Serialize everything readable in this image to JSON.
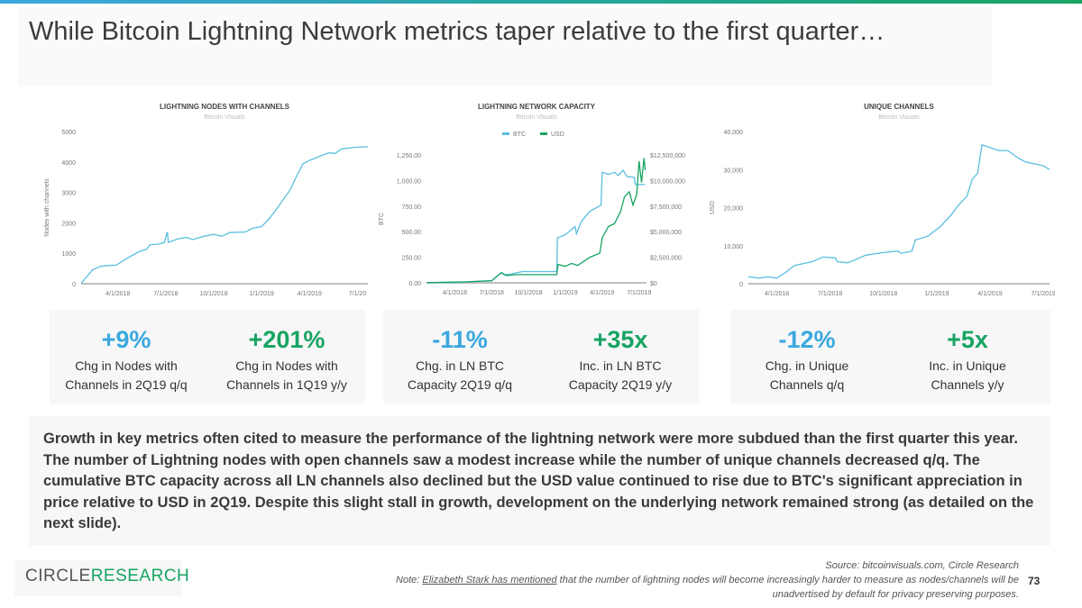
{
  "title": "While Bitcoin Lightning Network metrics taper relative to the first quarter…",
  "colors": {
    "blue": "#5bbfe0",
    "green": "#17a463"
  },
  "chart_data": [
    {
      "type": "line",
      "title": "LIGHTNING NODES WITH CHANNELS",
      "subtitle": "Bitcoin Visuals",
      "ylabel": "Nodes with channels",
      "ylim": [
        0,
        5000
      ],
      "yticks": [
        "0",
        "1000",
        "2000",
        "3000",
        "4000",
        "5000"
      ],
      "xticks": [
        "4/1/2018",
        "7/1/2018",
        "10/1/2018",
        "1/1/2019",
        "4/1/2019",
        "7/1/20"
      ],
      "x_unit": "months since 1/1/2018",
      "xlim": [
        0.7,
        18.65
      ],
      "series": [
        {
          "name": "Nodes",
          "color": "#5bbfe0",
          "points": [
            [
              0.7,
              0
            ],
            [
              1.0,
              200
            ],
            [
              1.4,
              450
            ],
            [
              1.9,
              570
            ],
            [
              2.4,
              600
            ],
            [
              2.9,
              610
            ],
            [
              3.3,
              750
            ],
            [
              3.8,
              900
            ],
            [
              4.3,
              1050
            ],
            [
              4.8,
              1130
            ],
            [
              5.0,
              1280
            ],
            [
              5.5,
              1300
            ],
            [
              5.9,
              1350
            ],
            [
              6.1,
              1700
            ],
            [
              6.15,
              1360
            ],
            [
              6.8,
              1480
            ],
            [
              7.3,
              1520
            ],
            [
              7.7,
              1450
            ],
            [
              8.3,
              1550
            ],
            [
              9.0,
              1620
            ],
            [
              9.5,
              1560
            ],
            [
              10.0,
              1680
            ],
            [
              11.0,
              1700
            ],
            [
              11.4,
              1820
            ],
            [
              12.0,
              1880
            ],
            [
              12.5,
              2150
            ],
            [
              13.0,
              2500
            ],
            [
              13.4,
              2800
            ],
            [
              13.8,
              3100
            ],
            [
              14.2,
              3550
            ],
            [
              14.6,
              3950
            ],
            [
              15.0,
              4050
            ],
            [
              15.7,
              4200
            ],
            [
              16.2,
              4300
            ],
            [
              16.6,
              4280
            ],
            [
              17.0,
              4430
            ],
            [
              17.8,
              4480
            ],
            [
              18.65,
              4500
            ]
          ]
        }
      ]
    },
    {
      "type": "line",
      "title": "LIGHTNING NETWORK CAPACITY",
      "subtitle": "Bitcoin Visuals",
      "ylabel": "BTC",
      "y2label": "USD",
      "legend": [
        "BTC",
        "USD"
      ],
      "legend_position": "top",
      "ylim": [
        0,
        1250
      ],
      "y2lim": [
        0,
        12500000
      ],
      "yticks": [
        "0.00",
        "250.00",
        "500.00",
        "750.00",
        "1,000.00",
        "1,250.00"
      ],
      "y2ticks": [
        "$0",
        "$2,500,000",
        "$5,000,000",
        "$7,500,000",
        "$10,000,000",
        "$12,500,000"
      ],
      "xticks": [
        "4/1/2018",
        "7/1/2018",
        "10/1/2018",
        "1/1/2019",
        "4/1/2019",
        "7/1/2019"
      ],
      "x_unit": "months since 1/1/2018",
      "xlim": [
        0.7,
        18.6
      ],
      "series": [
        {
          "name": "BTC",
          "axis": "left",
          "color": "#5bbfe0",
          "points": [
            [
              0.7,
              2
            ],
            [
              3,
              3
            ],
            [
              4,
              10
            ],
            [
              6,
              20
            ],
            [
              6.8,
              100
            ],
            [
              7,
              80
            ],
            [
              7.6,
              85
            ],
            [
              8.5,
              110
            ],
            [
              11.3,
              110
            ],
            [
              11.35,
              440
            ],
            [
              12,
              470
            ],
            [
              12.5,
              520
            ],
            [
              12.8,
              550
            ],
            [
              12.9,
              480
            ],
            [
              13.3,
              600
            ],
            [
              14,
              700
            ],
            [
              14.9,
              760
            ],
            [
              15,
              1080
            ],
            [
              15.5,
              1060
            ],
            [
              16,
              1080
            ],
            [
              16.3,
              1050
            ],
            [
              16.7,
              1100
            ],
            [
              17,
              1040
            ],
            [
              17.6,
              1030
            ],
            [
              17.7,
              960
            ],
            [
              18.5,
              960
            ]
          ]
        },
        {
          "name": "USD",
          "axis": "right",
          "color": "#17a463",
          "points": [
            [
              0.7,
              20000
            ],
            [
              4,
              100000
            ],
            [
              6,
              200000
            ],
            [
              6.8,
              1000000
            ],
            [
              7.2,
              700000
            ],
            [
              8,
              800000
            ],
            [
              11.3,
              800000
            ],
            [
              11.4,
              1800000
            ],
            [
              12,
              1600000
            ],
            [
              12.5,
              1900000
            ],
            [
              13,
              1700000
            ],
            [
              14,
              2500000
            ],
            [
              14.8,
              2900000
            ],
            [
              15,
              4400000
            ],
            [
              15.5,
              5500000
            ],
            [
              16,
              5800000
            ],
            [
              16.5,
              7000000
            ],
            [
              16.8,
              8400000
            ],
            [
              17.2,
              8900000
            ],
            [
              17.5,
              7600000
            ],
            [
              17.8,
              8600000
            ],
            [
              18.0,
              11900000
            ],
            [
              18.2,
              9800000
            ],
            [
              18.4,
              12200000
            ],
            [
              18.5,
              11000000
            ]
          ]
        }
      ]
    },
    {
      "type": "line",
      "title": "UNIQUE CHANNELS",
      "subtitle": "Bitcoin Visuals",
      "ylabel": "USD",
      "ylim": [
        0,
        40000
      ],
      "yticks": [
        "0",
        "10,000",
        "20,000",
        "30,000",
        "40,000"
      ],
      "xticks": [
        "4/1/2018",
        "7/1/2018",
        "10/1/2018",
        "1/1/2019",
        "4/1/2019",
        "7/1/2019"
      ],
      "x_unit": "months since 1/1/2018",
      "xlim": [
        1.4,
        18.35
      ],
      "series": [
        {
          "name": "Channels",
          "color": "#5bbfe0",
          "points": [
            [
              1.4,
              1800
            ],
            [
              2,
              1500
            ],
            [
              2.5,
              1800
            ],
            [
              3,
              1500
            ],
            [
              3.5,
              3000
            ],
            [
              4,
              4800
            ],
            [
              5,
              5800
            ],
            [
              5.6,
              7000
            ],
            [
              6.3,
              6800
            ],
            [
              6.4,
              5800
            ],
            [
              7,
              5500
            ],
            [
              8,
              7500
            ],
            [
              9,
              8200
            ],
            [
              9.8,
              8600
            ],
            [
              10,
              8000
            ],
            [
              10.6,
              8600
            ],
            [
              10.8,
              11500
            ],
            [
              11.5,
              12500
            ],
            [
              12.2,
              15000
            ],
            [
              12.8,
              18000
            ],
            [
              13.2,
              20500
            ],
            [
              13.7,
              23000
            ],
            [
              14,
              27500
            ],
            [
              14.3,
              29000
            ],
            [
              14.55,
              36500
            ],
            [
              15.5,
              35000
            ],
            [
              16,
              35000
            ],
            [
              16.6,
              33000
            ],
            [
              17,
              32000
            ],
            [
              18,
              31000
            ],
            [
              18.35,
              30000
            ]
          ]
        }
      ]
    }
  ],
  "stats": [
    {
      "value": "+9%",
      "label1": "Chg in Nodes with",
      "label2": "Channels in 2Q19 q/q",
      "color": "blue"
    },
    {
      "value": "+201%",
      "label1": "Chg in Nodes with",
      "label2": "Channels in 1Q19 y/y",
      "color": "green"
    },
    {
      "value": "-11%",
      "label1": "Chg. in LN BTC",
      "label2": "Capacity 2Q19 q/q",
      "color": "blue"
    },
    {
      "value": "+35x",
      "label1": "Inc. in LN BTC",
      "label2": "Capacity 2Q19 y/y",
      "color": "green"
    },
    {
      "value": "-12%",
      "label1": "Chg. in Unique",
      "label2": "Channels q/q",
      "color": "blue"
    },
    {
      "value": "+5x",
      "label1": "Inc. in Unique",
      "label2": "Channels y/y",
      "color": "green"
    }
  ],
  "body": "Growth in key metrics often cited to measure the performance of the lightning network were more subdued than the first quarter this year. The number of Lightning nodes with open channels saw a modest increase while the number of unique channels decreased q/q. The cumulative BTC capacity across all LN channels also declined but the USD value continued to rise due to BTC's significant appreciation in price relative to USD in 2Q19. Despite this slight stall in growth, development on the underlying network remained strong (as detailed on the next slide).",
  "logo": {
    "part1": "CIRCLE",
    "part2": "RESEARCH"
  },
  "footer": {
    "source": "Source: bitcoinvisuals.com, Circle Research",
    "note_prefix": "Note: ",
    "note_link": "Elizabeth Stark has mentioned",
    "note_rest": " that the number of lightning nodes will become increasingly harder to measure as nodes/channels will be unadvertised by default for privacy preserving purposes."
  },
  "page_number": "73"
}
